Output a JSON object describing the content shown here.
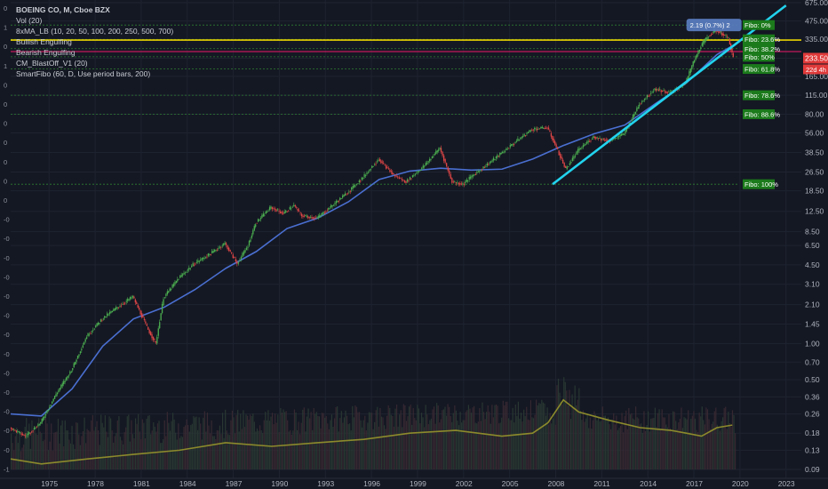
{
  "legend": {
    "title": "BOEING CO, M, Cboe BZX",
    "lines": [
      "Vol (20)",
      "8xMA_LB (10, 20, 50, 100, 200, 250, 500, 700)",
      "Bullish Engulfing",
      "Bearish Engulfing",
      "CM_BlastOff_V1 (20)",
      "SmartFibo (60, D, Use period bars, 200)"
    ]
  },
  "left_scale_labels": [
    "0",
    "1",
    "0",
    "1",
    "0",
    "0",
    "0",
    "0",
    "0",
    "0",
    "0",
    "-0",
    "-0",
    "-0",
    "-0",
    "-0",
    "-0",
    "-0",
    "-0",
    "-0",
    "-0",
    "-0",
    "-0",
    "-0",
    "-1"
  ],
  "callout_text": "2.19 (0.7%) 2",
  "price_tags": [
    {
      "text": "233.50",
      "color": "#e03a3a"
    },
    {
      "text": "22d 4h",
      "color": "#e03a3a"
    }
  ],
  "chart_data": {
    "type": "line",
    "title": "BOEING CO, M, Cboe BZX",
    "xlabel": "",
    "ylabel": "",
    "y_scale": "log",
    "x_ticks": [
      "1975",
      "1978",
      "1981",
      "1984",
      "1987",
      "1990",
      "1993",
      "1996",
      "1999",
      "2002",
      "2005",
      "2008",
      "2011",
      "2014",
      "2017",
      "2020",
      "2023"
    ],
    "y_ticks_price": [
      "675.00",
      "475.00",
      "335.00",
      "233.50",
      "165.00",
      "115.00",
      "80.00",
      "56.00",
      "38.50",
      "26.50",
      "18.50",
      "12.50",
      "8.50",
      "6.50",
      "4.50",
      "3.10",
      "2.10",
      "1.45",
      "1.00",
      "0.70",
      "0.50",
      "0.36",
      "0.26",
      "0.18",
      "0.13",
      "0.09"
    ],
    "series": [
      {
        "color": "#4a6fd1",
        "points": [
          [
            1973.0,
            0.26
          ],
          [
            1975.0,
            0.25
          ],
          [
            1977.0,
            0.42
          ],
          [
            1979.0,
            0.95
          ],
          [
            1981.0,
            1.6
          ],
          [
            1983.0,
            2.0
          ],
          [
            1985.0,
            2.8
          ],
          [
            1987.0,
            4.2
          ],
          [
            1989.0,
            5.8
          ],
          [
            1991.0,
            9.0
          ],
          [
            1993.0,
            11.0
          ],
          [
            1995.0,
            15.0
          ],
          [
            1997.0,
            23.0
          ],
          [
            1999.0,
            27.0
          ],
          [
            2001.0,
            28.5
          ],
          [
            2003.0,
            27.5
          ],
          [
            2005.0,
            28.0
          ],
          [
            2007.0,
            34.0
          ],
          [
            2009.0,
            44.0
          ],
          [
            2011.0,
            55.0
          ],
          [
            2013.0,
            65.0
          ],
          [
            2015.0,
            98.0
          ],
          [
            2017.0,
            145.0
          ],
          [
            2019.0,
            250.0
          ],
          [
            2020.1,
            300.0
          ]
        ]
      },
      {
        "color": "#4caf50",
        "points": [
          [
            1973.0,
            0.2
          ],
          [
            1974.0,
            0.17
          ],
          [
            1975.0,
            0.22
          ],
          [
            1976.0,
            0.38
          ],
          [
            1977.0,
            0.6
          ],
          [
            1978.0,
            1.15
          ],
          [
            1979.0,
            1.6
          ],
          [
            1980.0,
            2.0
          ],
          [
            1981.0,
            2.45
          ],
          [
            1982.0,
            1.3
          ],
          [
            1982.5,
            1.0
          ],
          [
            1983.0,
            2.4
          ],
          [
            1984.0,
            3.5
          ],
          [
            1985.0,
            4.6
          ],
          [
            1986.0,
            5.5
          ],
          [
            1987.0,
            6.8
          ],
          [
            1987.8,
            4.6
          ],
          [
            1988.5,
            6.5
          ],
          [
            1989.0,
            10.0
          ],
          [
            1990.0,
            13.5
          ],
          [
            1990.8,
            12.0
          ],
          [
            1991.5,
            14.0
          ],
          [
            1992.0,
            11.5
          ],
          [
            1993.0,
            11.0
          ],
          [
            1994.0,
            14.0
          ],
          [
            1995.0,
            18.0
          ],
          [
            1996.0,
            24.0
          ],
          [
            1997.0,
            34.0
          ],
          [
            1998.0,
            25.0
          ],
          [
            1998.8,
            22.0
          ],
          [
            2000.0,
            30.0
          ],
          [
            2001.0,
            42.0
          ],
          [
            2001.8,
            22.0
          ],
          [
            2002.5,
            21.0
          ],
          [
            2003.0,
            24.0
          ],
          [
            2004.0,
            30.0
          ],
          [
            2005.0,
            38.0
          ],
          [
            2006.0,
            48.0
          ],
          [
            2007.0,
            60.0
          ],
          [
            2008.0,
            62.0
          ],
          [
            2008.5,
            45.0
          ],
          [
            2009.2,
            28.0
          ],
          [
            2010.0,
            40.0
          ],
          [
            2011.0,
            52.0
          ],
          [
            2012.0,
            48.0
          ],
          [
            2013.0,
            55.0
          ],
          [
            2014.0,
            98.0
          ],
          [
            2015.0,
            130.0
          ],
          [
            2016.0,
            120.0
          ],
          [
            2017.0,
            145.0
          ],
          [
            2017.5,
            215.0
          ],
          [
            2018.0,
            295.0
          ],
          [
            2018.5,
            360.0
          ],
          [
            2019.0,
            395.0
          ],
          [
            2019.3,
            380.0
          ],
          [
            2019.8,
            340.0
          ],
          [
            2020.1,
            233.5
          ]
        ]
      }
    ],
    "trendline": {
      "color": "#22d3ee",
      "from": [
        2008.3,
        21.0
      ],
      "to": [
        2023.5,
        640.0
      ]
    },
    "horizontal_levels": [
      {
        "price": 330.0,
        "color": "#e8d200"
      },
      {
        "price": 265.0,
        "color": "#c2185b"
      }
    ],
    "fibo_levels": [
      {
        "label": "Fibo:  0%",
        "price": 440
      },
      {
        "label": "Fibo: 23.6%",
        "price": 335
      },
      {
        "label": "Fibo: 38.2%",
        "price": 280
      },
      {
        "label": "Fibo:  50%",
        "price": 240
      },
      {
        "label": "Fibo: 61.8%",
        "price": 190
      },
      {
        "label": "Fibo: 78.6%",
        "price": 115
      },
      {
        "label": "Fibo: 88.6%",
        "price": 80
      },
      {
        "label": "Fibo:  100%",
        "price": 21
      }
    ],
    "volume_ma": {
      "color": "#8c8a2c",
      "points": [
        [
          1973.0,
          0.11
        ],
        [
          1975.0,
          0.1
        ],
        [
          1978.0,
          0.11
        ],
        [
          1981.0,
          0.12
        ],
        [
          1984.0,
          0.13
        ],
        [
          1987.0,
          0.15
        ],
        [
          1990.0,
          0.14
        ],
        [
          1993.0,
          0.15
        ],
        [
          1996.0,
          0.16
        ],
        [
          1999.0,
          0.18
        ],
        [
          2002.0,
          0.19
        ],
        [
          2005.0,
          0.17
        ],
        [
          2007.0,
          0.18
        ],
        [
          2008.0,
          0.22
        ],
        [
          2009.0,
          0.34
        ],
        [
          2010.0,
          0.27
        ],
        [
          2012.0,
          0.23
        ],
        [
          2014.0,
          0.2
        ],
        [
          2016.0,
          0.19
        ],
        [
          2017.0,
          0.18
        ],
        [
          2018.0,
          0.17
        ],
        [
          2019.0,
          0.2
        ],
        [
          2020.0,
          0.21
        ]
      ]
    }
  }
}
